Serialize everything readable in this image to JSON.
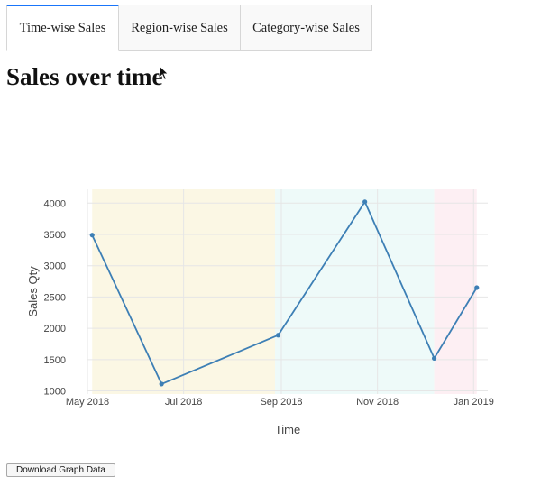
{
  "tabs": [
    {
      "label": "Time-wise Sales",
      "active": true
    },
    {
      "label": "Region-wise Sales",
      "active": false
    },
    {
      "label": "Category-wise Sales",
      "active": false
    }
  ],
  "page": {
    "title": "Sales over time"
  },
  "download": {
    "label": "Download Graph Data"
  },
  "chart_data": {
    "type": "line",
    "xlabel": "Time",
    "ylabel": "Sales Qty",
    "x": [
      "2018-05-04",
      "2018-06-17",
      "2018-08-30",
      "2018-10-24",
      "2018-12-07",
      "2019-01-03"
    ],
    "values": [
      3490,
      1110,
      1890,
      4020,
      1520,
      2650
    ],
    "xlim": [
      "2018-05-01",
      "2019-01-10"
    ],
    "ylim": [
      950,
      4220
    ],
    "yticks": [
      1000,
      1500,
      2000,
      2500,
      3000,
      3500,
      4000
    ],
    "xticks": [
      {
        "label": "May 2018",
        "date": "2018-05-01"
      },
      {
        "label": "Jul 2018",
        "date": "2018-07-01"
      },
      {
        "label": "Sep 2018",
        "date": "2018-09-01"
      },
      {
        "label": "Nov 2018",
        "date": "2018-11-01"
      },
      {
        "label": "Jan 2019",
        "date": "2019-01-01"
      }
    ],
    "bands": [
      {
        "from": "2018-05-04",
        "to": "2018-08-28",
        "color": "#fbf7e4"
      },
      {
        "from": "2018-08-28",
        "to": "2018-12-07",
        "color": "#eefaf9"
      },
      {
        "from": "2018-12-07",
        "to": "2019-01-03",
        "color": "#fdeff3"
      }
    ],
    "line_color": "#3d7fb5",
    "grid": true
  }
}
